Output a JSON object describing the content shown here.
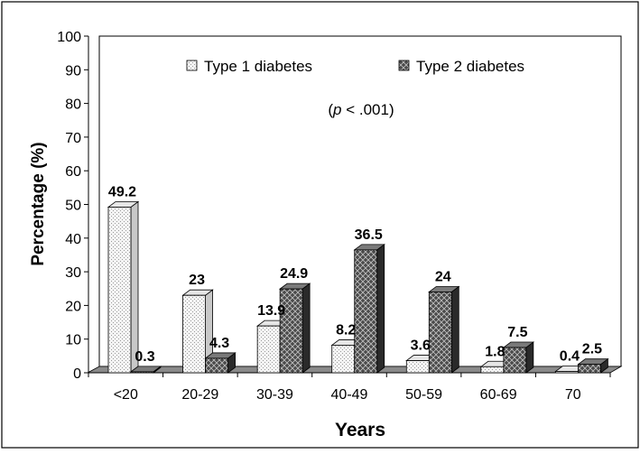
{
  "chart_data": {
    "type": "bar",
    "categories": [
      "<20",
      "20-29",
      "30-39",
      "40-49",
      "50-59",
      "60-69",
      "70"
    ],
    "series": [
      {
        "name": "Type 1 diabetes",
        "values": [
          49.2,
          23,
          13.9,
          8.2,
          3.6,
          1.8,
          0.4
        ],
        "labels": [
          "49.2",
          "23",
          "13.9",
          "8.2",
          "3.6",
          "1.8",
          "0.4"
        ]
      },
      {
        "name": "Type 2 diabetes",
        "values": [
          0.3,
          4.3,
          24.9,
          36.5,
          24,
          7.5,
          2.5
        ],
        "labels": [
          "0.3",
          "4.3",
          "24.9",
          "36.5",
          "24",
          "7.5",
          "2.5"
        ]
      }
    ],
    "xlabel": "Years",
    "ylabel": "Percentage (%)",
    "ylim": [
      0,
      100
    ],
    "yticks": [
      "0",
      "10",
      "20",
      "30",
      "40",
      "50",
      "60",
      "70",
      "80",
      "90",
      "100"
    ],
    "annotation": "(p < .001)",
    "legend_position": "top",
    "grid": false,
    "colors": {
      "type1_fill": "#f4f4f4",
      "type2_fill": "#505050",
      "floor": "#8a8a8a",
      "text": "#000000"
    }
  }
}
